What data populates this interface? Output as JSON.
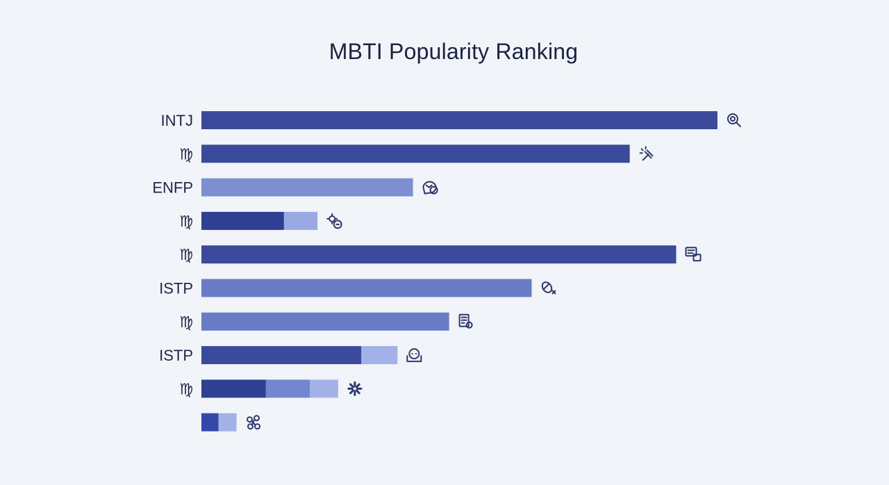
{
  "chart_data": {
    "type": "bar",
    "orientation": "horizontal",
    "title": "MBTI Popularity Ranking",
    "xlabel": "",
    "ylabel": "",
    "xlim": [
      0,
      100
    ],
    "grid": false,
    "rows": [
      {
        "label": "INTJ",
        "icon": "magnifier-icon",
        "segments": [
          {
            "value": 100,
            "color": "#3b4a9a"
          }
        ]
      },
      {
        "label": "♍",
        "icon": "hand-sparkle-icon",
        "segments": [
          {
            "value": 83,
            "color": "#3b4a9a"
          }
        ]
      },
      {
        "label": "ENFP",
        "icon": "chat-bubbles-icon",
        "segments": [
          {
            "value": 41,
            "color": "#7d8fd0"
          }
        ]
      },
      {
        "label": "♍",
        "icon": "gear-chat-icon",
        "segments": [
          {
            "value": 16,
            "color": "#2f3f94"
          },
          {
            "value": 6.5,
            "color": "#9aa8e4"
          }
        ]
      },
      {
        "label": "♍",
        "icon": "message-box-icon",
        "segments": [
          {
            "value": 92,
            "color": "#3b4a9a"
          }
        ]
      },
      {
        "label": "ISTP",
        "icon": "satellite-x-icon",
        "segments": [
          {
            "value": 64,
            "color": "#6a7cc5"
          }
        ]
      },
      {
        "label": "♍",
        "icon": "document-badge-icon",
        "segments": [
          {
            "value": 48,
            "color": "#6a7cc5"
          }
        ]
      },
      {
        "label": "ISTP",
        "icon": "face-tray-icon",
        "segments": [
          {
            "value": 31,
            "color": "#3b4a9a"
          },
          {
            "value": 7,
            "color": "#a4b1e8"
          }
        ]
      },
      {
        "label": "♍",
        "icon": "spinner-icon",
        "segments": [
          {
            "value": 12.5,
            "color": "#2f3f94"
          },
          {
            "value": 8.5,
            "color": "#7486d0"
          },
          {
            "value": 5.5,
            "color": "#a4b1e8"
          }
        ]
      },
      {
        "label": "",
        "icon": "molecule-icon",
        "segments": [
          {
            "value": 3.3,
            "color": "#3348a8"
          },
          {
            "value": 3.5,
            "color": "#a4b1e8"
          }
        ]
      }
    ]
  }
}
